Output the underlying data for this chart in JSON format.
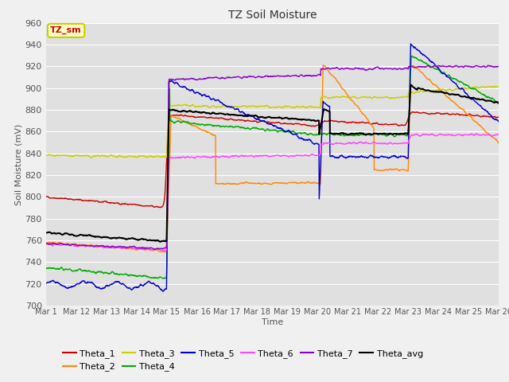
{
  "title": "TZ Soil Moisture",
  "xlabel": "Time",
  "ylabel": "Soil Moisture (mV)",
  "ylim": [
    700,
    960
  ],
  "yticks": [
    700,
    720,
    740,
    760,
    780,
    800,
    820,
    840,
    860,
    880,
    900,
    920,
    940,
    960
  ],
  "x_labels": [
    "Mar 1",
    "Mar 12",
    "Mar 13",
    "Mar 14",
    "Mar 15",
    "Mar 16",
    "Mar 17",
    "Mar 18",
    "Mar 19",
    "Mar 20",
    "Mar 21",
    "Mar 22",
    "Mar 23",
    "Mar 24",
    "Mar 25",
    "Mar 26"
  ],
  "colors": {
    "Theta_1": "#cc0000",
    "Theta_2": "#ff8800",
    "Theta_3": "#cccc00",
    "Theta_4": "#00aa00",
    "Theta_5": "#0000cc",
    "Theta_6": "#ff44ff",
    "Theta_7": "#8800cc",
    "Theta_avg": "#000000"
  },
  "bg_color": "#e0e0e0",
  "annotation_text": "TZ_sm",
  "annotation_bg": "#ffffcc",
  "annotation_border": "#cccc00"
}
